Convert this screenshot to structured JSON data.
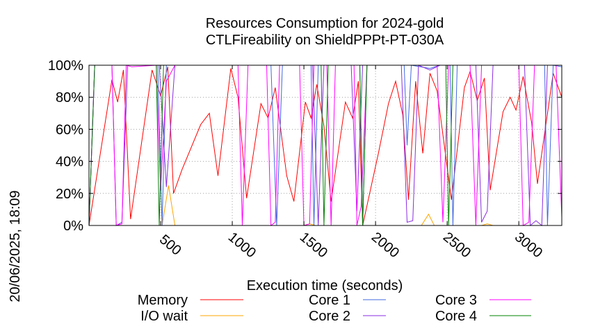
{
  "chart_data": {
    "type": "line",
    "title": "Resources Consumption for 2024-gold",
    "subtitle": "CTLFireability on ShieldPPPt-PT-030A",
    "xlabel": "Execution time (seconds)",
    "ylabel": "",
    "side_label": "20/06/2025, 18:09",
    "xlim": [
      0,
      3300
    ],
    "ylim": [
      0,
      100
    ],
    "x_ticks": [
      500,
      1000,
      1500,
      2000,
      2500,
      3000
    ],
    "x_tick_labels": [
      "500",
      "1000",
      "1500",
      "2000",
      "2500",
      "3000"
    ],
    "y_ticks": [
      0,
      20,
      40,
      60,
      80,
      100
    ],
    "y_tick_labels": [
      "0%",
      "20%",
      "40%",
      "60%",
      "80%",
      "100%"
    ],
    "grid": true,
    "legend_position": "bottom",
    "series": [
      {
        "name": "Memory",
        "color": "#ff0000",
        "points": [
          [
            0,
            0
          ],
          [
            160,
            91
          ],
          [
            200,
            77
          ],
          [
            240,
            97
          ],
          [
            290,
            4
          ],
          [
            440,
            97
          ],
          [
            500,
            81
          ],
          [
            550,
            99
          ],
          [
            590,
            20
          ],
          [
            650,
            35
          ],
          [
            780,
            63
          ],
          [
            840,
            70
          ],
          [
            900,
            31
          ],
          [
            990,
            98
          ],
          [
            1040,
            80
          ],
          [
            1100,
            17
          ],
          [
            1200,
            76
          ],
          [
            1250,
            67
          ],
          [
            1300,
            86
          ],
          [
            1380,
            31
          ],
          [
            1430,
            15
          ],
          [
            1510,
            77
          ],
          [
            1550,
            67
          ],
          [
            1590,
            88
          ],
          [
            1640,
            62
          ],
          [
            1690,
            15
          ],
          [
            1790,
            77
          ],
          [
            1840,
            67
          ],
          [
            1880,
            90
          ],
          [
            1910,
            0
          ],
          [
            2020,
            45
          ],
          [
            2090,
            76
          ],
          [
            2140,
            90
          ],
          [
            2190,
            69
          ],
          [
            2230,
            16
          ],
          [
            2280,
            90
          ],
          [
            2330,
            45
          ],
          [
            2380,
            95
          ],
          [
            2430,
            84
          ],
          [
            2480,
            50
          ],
          [
            2530,
            16
          ],
          [
            2620,
            86
          ],
          [
            2660,
            96
          ],
          [
            2710,
            78
          ],
          [
            2760,
            92
          ],
          [
            2800,
            22
          ],
          [
            2890,
            71
          ],
          [
            2940,
            80
          ],
          [
            2980,
            72
          ],
          [
            3030,
            93
          ],
          [
            3090,
            64
          ],
          [
            3130,
            26
          ],
          [
            3240,
            95
          ],
          [
            3300,
            80
          ]
        ]
      },
      {
        "name": "I/O wait",
        "color": "#ffa500",
        "points": [
          [
            0,
            0
          ],
          [
            510,
            0
          ],
          [
            555,
            25
          ],
          [
            600,
            0
          ],
          [
            1500,
            0
          ],
          [
            1540,
            1
          ],
          [
            1580,
            0
          ],
          [
            2320,
            0
          ],
          [
            2370,
            7
          ],
          [
            2410,
            0
          ],
          [
            2740,
            0
          ],
          [
            2780,
            1
          ],
          [
            2820,
            0
          ],
          [
            3300,
            0
          ]
        ]
      },
      {
        "name": "Core 1",
        "color": "#4169e1",
        "points": [
          [
            0,
            0
          ],
          [
            40,
            100
          ],
          [
            480,
            100
          ],
          [
            510,
            0
          ],
          [
            540,
            100
          ],
          [
            1270,
            100
          ],
          [
            1310,
            0
          ],
          [
            1350,
            100
          ],
          [
            1550,
            100
          ],
          [
            1570,
            0
          ],
          [
            1600,
            100
          ],
          [
            1890,
            100
          ],
          [
            1910,
            0
          ],
          [
            1940,
            100
          ],
          [
            2200,
            100
          ],
          [
            2220,
            50
          ],
          [
            2250,
            100
          ],
          [
            2380,
            98
          ],
          [
            2450,
            100
          ],
          [
            2520,
            100
          ],
          [
            2540,
            0
          ],
          [
            2570,
            100
          ],
          [
            3180,
            100
          ],
          [
            3200,
            0
          ],
          [
            3240,
            100
          ],
          [
            3300,
            99
          ]
        ]
      },
      {
        "name": "Core 2",
        "color": "#8a2be2",
        "points": [
          [
            0,
            0
          ],
          [
            40,
            100
          ],
          [
            160,
            100
          ],
          [
            190,
            0
          ],
          [
            230,
            2
          ],
          [
            270,
            100
          ],
          [
            490,
            100
          ],
          [
            540,
            24
          ],
          [
            600,
            100
          ],
          [
            1560,
            100
          ],
          [
            1600,
            0
          ],
          [
            1640,
            100
          ],
          [
            1830,
            100
          ],
          [
            1870,
            9
          ],
          [
            1910,
            100
          ],
          [
            2180,
            100
          ],
          [
            2220,
            2
          ],
          [
            2260,
            3
          ],
          [
            2300,
            100
          ],
          [
            2380,
            97
          ],
          [
            2450,
            100
          ],
          [
            2700,
            100
          ],
          [
            2740,
            2
          ],
          [
            2780,
            9
          ],
          [
            2820,
            100
          ],
          [
            3040,
            100
          ],
          [
            3080,
            0
          ],
          [
            3120,
            3
          ],
          [
            3160,
            0
          ],
          [
            3200,
            100
          ],
          [
            3300,
            100
          ]
        ]
      },
      {
        "name": "Core 3",
        "color": "#ff00ff",
        "points": [
          [
            0,
            0
          ],
          [
            40,
            100
          ],
          [
            160,
            100
          ],
          [
            190,
            0
          ],
          [
            230,
            1
          ],
          [
            260,
            100
          ],
          [
            300,
            99
          ],
          [
            470,
            100
          ],
          [
            500,
            22
          ],
          [
            540,
            90
          ],
          [
            600,
            100
          ],
          [
            1040,
            100
          ],
          [
            1070,
            0
          ],
          [
            1110,
            100
          ],
          [
            1240,
            100
          ],
          [
            1270,
            0
          ],
          [
            1300,
            2
          ],
          [
            1330,
            100
          ],
          [
            1470,
            100
          ],
          [
            1500,
            0
          ],
          [
            1540,
            1
          ],
          [
            1570,
            100
          ],
          [
            1660,
            100
          ],
          [
            1690,
            0
          ],
          [
            1720,
            100
          ],
          [
            1850,
            100
          ],
          [
            1870,
            0
          ],
          [
            1900,
            12
          ],
          [
            1940,
            100
          ],
          [
            2430,
            100
          ],
          [
            2470,
            2
          ],
          [
            2510,
            100
          ],
          [
            2660,
            100
          ],
          [
            2700,
            0
          ],
          [
            2740,
            100
          ],
          [
            3000,
            100
          ],
          [
            3030,
            0
          ],
          [
            3070,
            2
          ],
          [
            3110,
            100
          ],
          [
            3260,
            100
          ],
          [
            3300,
            5
          ]
        ]
      },
      {
        "name": "Core 4",
        "color": "#008000",
        "points": [
          [
            0,
            0
          ],
          [
            40,
            100
          ],
          [
            470,
            100
          ],
          [
            490,
            0
          ],
          [
            520,
            100
          ],
          [
            1620,
            100
          ],
          [
            1640,
            0
          ],
          [
            1670,
            100
          ],
          [
            1890,
            100
          ],
          [
            1910,
            0
          ],
          [
            1940,
            100
          ],
          [
            2490,
            100
          ],
          [
            2510,
            0
          ],
          [
            2540,
            100
          ],
          [
            3300,
            100
          ]
        ]
      }
    ]
  }
}
